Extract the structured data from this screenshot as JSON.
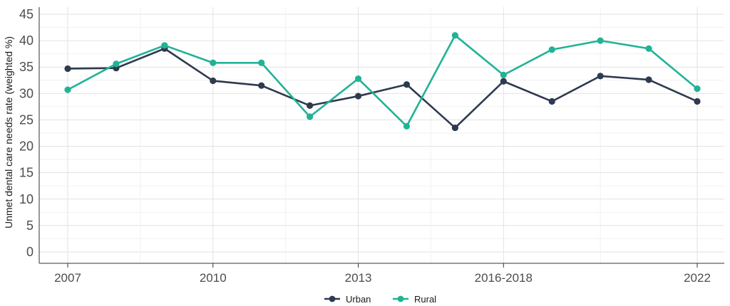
{
  "chart_data": {
    "type": "line",
    "title": "",
    "xlabel": "",
    "ylabel": "Unmet dental care needs rate (weighted %)",
    "ylim": [
      0,
      45
    ],
    "y_ticks": [
      "0",
      "5",
      "10",
      "15",
      "20",
      "25",
      "30",
      "35",
      "40",
      "45"
    ],
    "x_tick_labels": [
      {
        "label": "2007",
        "index": 0
      },
      {
        "label": "2010",
        "index": 3
      },
      {
        "label": "2013",
        "index": 6
      },
      {
        "label": "2016-2018",
        "index": 9
      },
      {
        "label": "2022",
        "index": 13
      }
    ],
    "x_index_count": 14,
    "grid": true,
    "legend_position": "bottom",
    "series": [
      {
        "name": "Urban",
        "color": "#2e3a4f",
        "points": [
          {
            "i": 0,
            "y": 34.7
          },
          {
            "i": 1,
            "y": 34.8
          },
          {
            "i": 2,
            "y": 38.5
          },
          {
            "i": 3,
            "y": 32.4
          },
          {
            "i": 4,
            "y": 31.5
          },
          {
            "i": 5,
            "y": 27.7
          },
          {
            "i": 6,
            "y": 29.5
          },
          {
            "i": 7,
            "y": 31.7
          },
          {
            "i": 8,
            "y": 23.5
          },
          {
            "i": 9,
            "y": 32.3
          },
          {
            "i": 10,
            "y": 28.5
          },
          {
            "i": 11,
            "y": 33.3
          },
          {
            "i": 12,
            "y": 32.6
          },
          {
            "i": 13,
            "y": 28.5
          }
        ]
      },
      {
        "name": "Rural",
        "color": "#21b395",
        "points": [
          {
            "i": 0,
            "y": 30.7
          },
          {
            "i": 1,
            "y": 35.6
          },
          {
            "i": 2,
            "y": 39.1
          },
          {
            "i": 3,
            "y": 35.8
          },
          {
            "i": 4,
            "y": 35.8
          },
          {
            "i": 5,
            "y": 25.6
          },
          {
            "i": 6,
            "y": 32.8
          },
          {
            "i": 7,
            "y": 23.8
          },
          {
            "i": 8,
            "y": 41.0
          },
          {
            "i": 9,
            "y": 33.5
          },
          {
            "i": 10,
            "y": 38.3
          },
          {
            "i": 11,
            "y": 40.0
          },
          {
            "i": 12,
            "y": 38.5
          },
          {
            "i": 13,
            "y": 30.9
          }
        ]
      }
    ]
  }
}
